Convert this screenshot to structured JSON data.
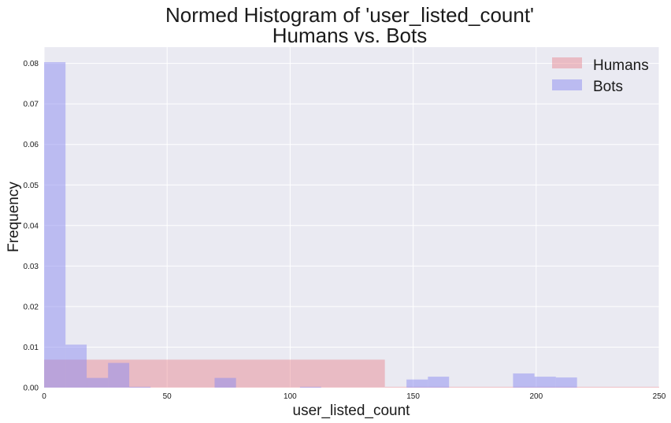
{
  "chart_data": {
    "type": "bar",
    "title_line1": "Normed Histogram of 'user_listed_count'",
    "title_line2": "Humans vs. Bots",
    "xlabel": "user_listed_count",
    "ylabel": "Frequency",
    "xlim": [
      0,
      250
    ],
    "ylim": [
      0,
      0.084
    ],
    "xticks": [
      0,
      50,
      100,
      150,
      200,
      250
    ],
    "xtick_labels": [
      "0",
      "50",
      "100",
      "150",
      "200",
      "250"
    ],
    "yticks": [
      0,
      0.01,
      0.02,
      0.03,
      0.04,
      0.05,
      0.06,
      0.07,
      0.08
    ],
    "ytick_labels": [
      "0.00",
      "0.01",
      "0.02",
      "0.03",
      "0.04",
      "0.05",
      "0.06",
      "0.07",
      "0.08"
    ],
    "grid": true,
    "legend_position": "top-right",
    "series": [
      {
        "name": "Humans",
        "color": "#e8828c",
        "opacity": 0.45,
        "bins": [
          {
            "x0": 0,
            "x1": 17.3,
            "value": 0.0069
          },
          {
            "x0": 17.3,
            "x1": 138.5,
            "value": 0.0069
          },
          {
            "x0": 138.5,
            "x1": 250,
            "value": 0.0002
          }
        ]
      },
      {
        "name": "Bots",
        "color": "#8c8cf0",
        "opacity": 0.5,
        "bins": [
          {
            "x0": 0,
            "x1": 8.7,
            "value": 0.0803
          },
          {
            "x0": 8.7,
            "x1": 17.3,
            "value": 0.0106
          },
          {
            "x0": 17.3,
            "x1": 26.0,
            "value": 0.0024
          },
          {
            "x0": 26.0,
            "x1": 34.6,
            "value": 0.0061
          },
          {
            "x0": 34.6,
            "x1": 43.3,
            "value": 0.0002
          },
          {
            "x0": 69.3,
            "x1": 78.0,
            "value": 0.0024
          },
          {
            "x0": 104.0,
            "x1": 112.6,
            "value": 0.0002
          },
          {
            "x0": 147.3,
            "x1": 156.0,
            "value": 0.002
          },
          {
            "x0": 156.0,
            "x1": 164.6,
            "value": 0.0027
          },
          {
            "x0": 190.6,
            "x1": 199.3,
            "value": 0.0035
          },
          {
            "x0": 199.3,
            "x1": 208.0,
            "value": 0.0027
          },
          {
            "x0": 208.0,
            "x1": 216.6,
            "value": 0.0025
          }
        ]
      }
    ]
  }
}
